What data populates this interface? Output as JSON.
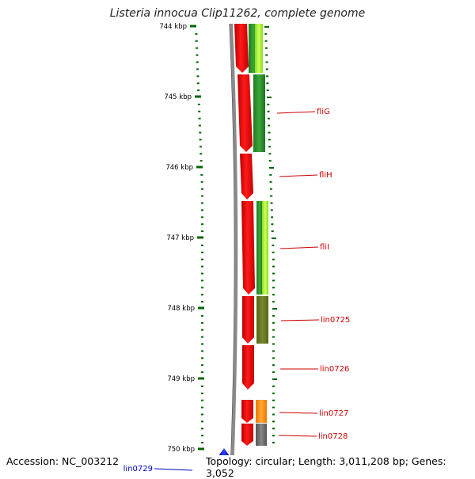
{
  "title": "Listeria innocua Clip11262, complete genome",
  "accession": "Accession: NC_003212",
  "topology": "Topology: circular; Length: 3,011,208 bp; Genes: 3,052",
  "ticks": [
    "744 kbp",
    "745 kbp",
    "746 kbp",
    "747 kbp",
    "748 kbp",
    "749 kbp",
    "750 kbp"
  ],
  "genes": [
    {
      "name": "fliG",
      "color": "#cc0000"
    },
    {
      "name": "fliH",
      "color": "#cc0000"
    },
    {
      "name": "fliI",
      "color": "#cc0000"
    },
    {
      "name": "lin0725",
      "color": "#cc0000"
    },
    {
      "name": "lin0726",
      "color": "#cc0000"
    },
    {
      "name": "lin0727",
      "color": "#cc0000"
    },
    {
      "name": "lin0728",
      "color": "#cc0000"
    },
    {
      "name": "lin0729",
      "color": "#0000cc"
    }
  ],
  "colors": {
    "forward_cds": "#ff0000",
    "reverse_cds": "#0000ff",
    "backbone": "#888888",
    "ticks": "#006600",
    "cog_dark_green": "#2e8b2e",
    "cog_light_green": "#99ee22",
    "cog_olive": "#667722",
    "cog_orange": "#ff8c00",
    "cog_gray": "#666666"
  }
}
